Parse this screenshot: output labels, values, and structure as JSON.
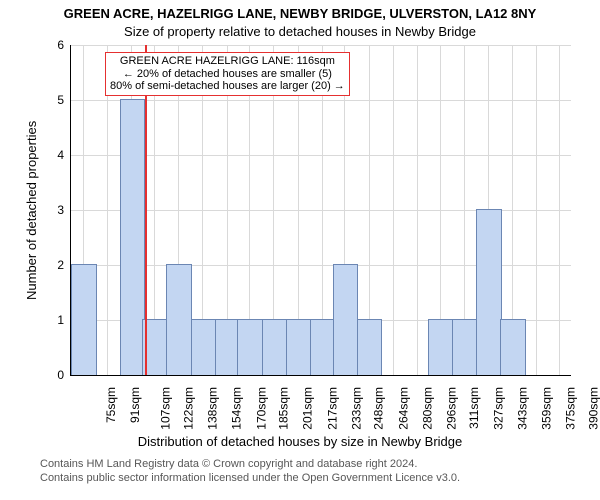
{
  "chart": {
    "type": "histogram",
    "title_line1": "GREEN ACRE, HAZELRIGG LANE, NEWBY BRIDGE, ULVERSTON, LA12 8NY",
    "title_line2": "Size of property relative to detached houses in Newby Bridge",
    "title1_fontsize": 13,
    "title2_fontsize": 13,
    "ylabel": "Number of detached properties",
    "xlabel": "Distribution of detached houses by size in Newby Bridge",
    "axis_label_fontsize": 13,
    "tick_fontsize": 12,
    "background_color": "#ffffff",
    "grid_color": "#d9d9d9",
    "axis_color": "#000000",
    "bar_fill": "#c3d6f2",
    "bar_border": "#6b86b3",
    "highlight_color": "#e53030",
    "highlight_x": 116,
    "xlim": [
      67,
      398
    ],
    "ylim": [
      0,
      6
    ],
    "ytick_step": 1,
    "bin_width": 15.76,
    "xtick_positions": [
      75,
      91,
      107,
      122,
      138,
      154,
      170,
      185,
      201,
      217,
      233,
      248,
      264,
      280,
      296,
      311,
      327,
      343,
      359,
      375,
      390
    ],
    "xtick_labels": [
      "75sqm",
      "91sqm",
      "107sqm",
      "122sqm",
      "138sqm",
      "154sqm",
      "170sqm",
      "185sqm",
      "201sqm",
      "217sqm",
      "233sqm",
      "248sqm",
      "264sqm",
      "280sqm",
      "296sqm",
      "311sqm",
      "327sqm",
      "343sqm",
      "359sqm",
      "375sqm",
      "390sqm"
    ],
    "bar_values": [
      2,
      0,
      5,
      1,
      2,
      1,
      1,
      1,
      1,
      1,
      1,
      2,
      1,
      0,
      0,
      1,
      1,
      3,
      1,
      0,
      0
    ],
    "yticks": [
      0,
      1,
      2,
      3,
      4,
      5,
      6
    ]
  },
  "annotation": {
    "line1": "GREEN ACRE HAZELRIGG LANE: 116sqm",
    "line2": "← 20% of detached houses are smaller (5)",
    "line3": "80% of semi-detached houses are larger (20) →",
    "border_color": "#e53030",
    "fontsize": 11
  },
  "footer": {
    "line1": "Contains HM Land Registry data © Crown copyright and database right 2024.",
    "line2": "Contains public sector information licensed under the Open Government Licence v3.0.",
    "fontsize": 11,
    "color": "#575757"
  }
}
